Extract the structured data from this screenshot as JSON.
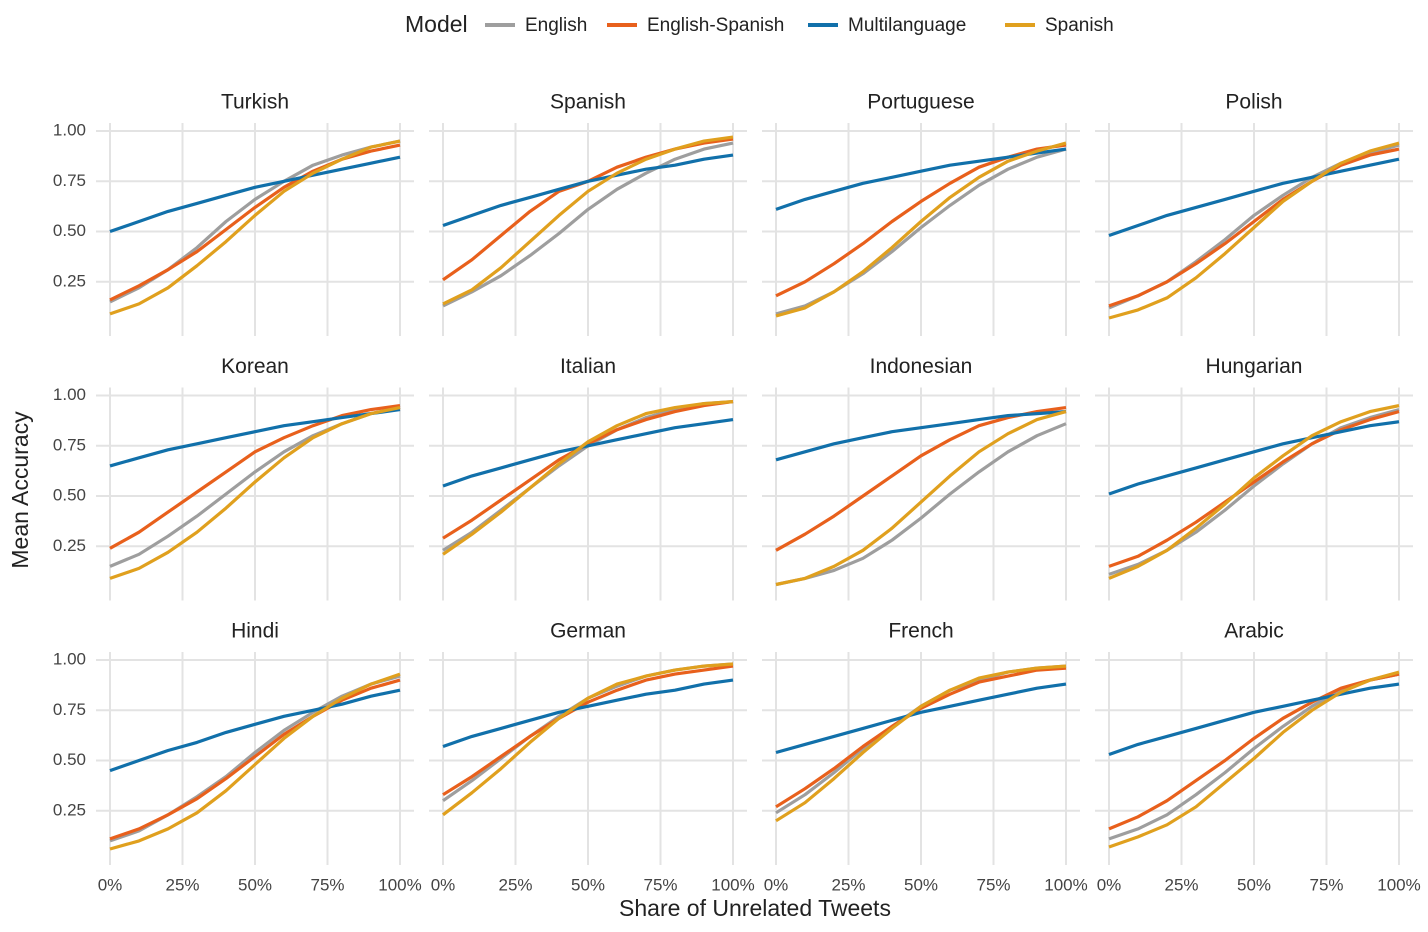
{
  "chart_data": {
    "type": "line",
    "legend_title": "Model",
    "x_label": "Share of Unrelated Tweets",
    "y_label": "Mean Accuracy",
    "x": [
      0,
      10,
      20,
      30,
      40,
      50,
      60,
      70,
      80,
      90,
      100
    ],
    "xlim": [
      0,
      100
    ],
    "xticks": [
      {
        "value": 0,
        "label": "0%"
      },
      {
        "value": 25,
        "label": "25%"
      },
      {
        "value": 50,
        "label": "50%"
      },
      {
        "value": 75,
        "label": "75%"
      },
      {
        "value": 100,
        "label": "100%"
      }
    ],
    "ylim": [
      0.02,
      1.03
    ],
    "yticks": [
      0.25,
      {
        "value": 0.5,
        "label": "0.50"
      },
      0.75,
      {
        "value": 1,
        "label": "1.00"
      }
    ],
    "grid": true,
    "series": [
      {
        "name": "English",
        "color": "#9e9e9e"
      },
      {
        "name": "English-Spanish",
        "color": "#e8601c"
      },
      {
        "name": "Multilanguage",
        "color": "#1170aa"
      },
      {
        "name": "Spanish",
        "color": "#e0a01e"
      }
    ],
    "panels": [
      {
        "title": "Turkish",
        "values": [
          [
            0.15,
            0.22,
            0.31,
            0.42,
            0.55,
            0.66,
            0.75,
            0.83,
            0.88,
            0.92,
            0.95
          ],
          [
            0.16,
            0.23,
            0.31,
            0.4,
            0.51,
            0.62,
            0.72,
            0.8,
            0.86,
            0.9,
            0.93
          ],
          [
            0.5,
            0.55,
            0.6,
            0.64,
            0.68,
            0.72,
            0.75,
            0.78,
            0.81,
            0.84,
            0.87
          ],
          [
            0.09,
            0.14,
            0.22,
            0.33,
            0.45,
            0.58,
            0.7,
            0.79,
            0.86,
            0.92,
            0.95
          ]
        ]
      },
      {
        "title": "Spanish",
        "values": [
          [
            0.13,
            0.2,
            0.28,
            0.38,
            0.49,
            0.61,
            0.71,
            0.79,
            0.86,
            0.91,
            0.94
          ],
          [
            0.26,
            0.36,
            0.48,
            0.6,
            0.7,
            0.75,
            0.82,
            0.87,
            0.91,
            0.94,
            0.96
          ],
          [
            0.53,
            0.58,
            0.63,
            0.67,
            0.71,
            0.75,
            0.78,
            0.81,
            0.83,
            0.86,
            0.88
          ],
          [
            0.14,
            0.21,
            0.32,
            0.45,
            0.58,
            0.7,
            0.79,
            0.86,
            0.91,
            0.95,
            0.97
          ]
        ]
      },
      {
        "title": "Portuguese",
        "values": [
          [
            0.09,
            0.13,
            0.2,
            0.29,
            0.4,
            0.52,
            0.63,
            0.73,
            0.81,
            0.87,
            0.91
          ],
          [
            0.18,
            0.25,
            0.34,
            0.44,
            0.55,
            0.65,
            0.74,
            0.82,
            0.87,
            0.91,
            0.93
          ],
          [
            0.61,
            0.66,
            0.7,
            0.74,
            0.77,
            0.8,
            0.83,
            0.85,
            0.87,
            0.89,
            0.91
          ],
          [
            0.08,
            0.12,
            0.2,
            0.3,
            0.42,
            0.55,
            0.67,
            0.77,
            0.85,
            0.9,
            0.94
          ]
        ]
      },
      {
        "title": "Polish",
        "values": [
          [
            0.12,
            0.18,
            0.25,
            0.35,
            0.46,
            0.58,
            0.68,
            0.77,
            0.84,
            0.89,
            0.93
          ],
          [
            0.13,
            0.18,
            0.25,
            0.34,
            0.44,
            0.55,
            0.66,
            0.75,
            0.83,
            0.88,
            0.91
          ],
          [
            0.48,
            0.53,
            0.58,
            0.62,
            0.66,
            0.7,
            0.74,
            0.77,
            0.8,
            0.83,
            0.86
          ],
          [
            0.07,
            0.11,
            0.17,
            0.27,
            0.39,
            0.52,
            0.65,
            0.75,
            0.84,
            0.9,
            0.94
          ]
        ]
      },
      {
        "title": "Korean",
        "values": [
          [
            0.15,
            0.21,
            0.3,
            0.4,
            0.51,
            0.62,
            0.72,
            0.8,
            0.86,
            0.91,
            0.94
          ],
          [
            0.24,
            0.32,
            0.42,
            0.52,
            0.62,
            0.72,
            0.79,
            0.85,
            0.9,
            0.93,
            0.95
          ],
          [
            0.65,
            0.69,
            0.73,
            0.76,
            0.79,
            0.82,
            0.85,
            0.87,
            0.89,
            0.91,
            0.93
          ],
          [
            0.09,
            0.14,
            0.22,
            0.32,
            0.44,
            0.57,
            0.69,
            0.79,
            0.86,
            0.91,
            0.94
          ]
        ]
      },
      {
        "title": "Italian",
        "values": [
          [
            0.23,
            0.32,
            0.43,
            0.54,
            0.65,
            0.75,
            0.83,
            0.89,
            0.93,
            0.96,
            0.97
          ],
          [
            0.29,
            0.38,
            0.48,
            0.58,
            0.68,
            0.76,
            0.83,
            0.88,
            0.92,
            0.95,
            0.97
          ],
          [
            0.55,
            0.6,
            0.64,
            0.68,
            0.72,
            0.75,
            0.78,
            0.81,
            0.84,
            0.86,
            0.88
          ],
          [
            0.21,
            0.31,
            0.42,
            0.54,
            0.66,
            0.77,
            0.85,
            0.91,
            0.94,
            0.96,
            0.97
          ]
        ]
      },
      {
        "title": "Indonesian",
        "values": [
          [
            0.06,
            0.09,
            0.13,
            0.19,
            0.28,
            0.39,
            0.51,
            0.62,
            0.72,
            0.8,
            0.86
          ],
          [
            0.23,
            0.31,
            0.4,
            0.5,
            0.6,
            0.7,
            0.78,
            0.85,
            0.89,
            0.92,
            0.94
          ],
          [
            0.68,
            0.72,
            0.76,
            0.79,
            0.82,
            0.84,
            0.86,
            0.88,
            0.9,
            0.91,
            0.92
          ],
          [
            0.06,
            0.09,
            0.15,
            0.23,
            0.34,
            0.47,
            0.6,
            0.72,
            0.81,
            0.88,
            0.92
          ]
        ]
      },
      {
        "title": "Hungarian",
        "values": [
          [
            0.11,
            0.16,
            0.23,
            0.32,
            0.43,
            0.55,
            0.66,
            0.76,
            0.84,
            0.89,
            0.93
          ],
          [
            0.15,
            0.2,
            0.28,
            0.37,
            0.47,
            0.57,
            0.67,
            0.76,
            0.83,
            0.88,
            0.92
          ],
          [
            0.51,
            0.56,
            0.6,
            0.64,
            0.68,
            0.72,
            0.76,
            0.79,
            0.82,
            0.85,
            0.87
          ],
          [
            0.09,
            0.15,
            0.23,
            0.34,
            0.46,
            0.59,
            0.7,
            0.8,
            0.87,
            0.92,
            0.95
          ]
        ]
      },
      {
        "title": "Hindi",
        "values": [
          [
            0.1,
            0.15,
            0.23,
            0.32,
            0.42,
            0.54,
            0.65,
            0.74,
            0.82,
            0.88,
            0.92
          ],
          [
            0.11,
            0.16,
            0.23,
            0.31,
            0.41,
            0.52,
            0.63,
            0.72,
            0.8,
            0.86,
            0.9
          ],
          [
            0.45,
            0.5,
            0.55,
            0.59,
            0.64,
            0.68,
            0.72,
            0.75,
            0.78,
            0.82,
            0.85
          ],
          [
            0.06,
            0.1,
            0.16,
            0.24,
            0.35,
            0.48,
            0.61,
            0.72,
            0.81,
            0.88,
            0.93
          ]
        ]
      },
      {
        "title": "German",
        "values": [
          [
            0.3,
            0.4,
            0.51,
            0.62,
            0.72,
            0.81,
            0.87,
            0.92,
            0.95,
            0.97,
            0.98
          ],
          [
            0.33,
            0.42,
            0.52,
            0.62,
            0.71,
            0.79,
            0.85,
            0.9,
            0.93,
            0.95,
            0.97
          ],
          [
            0.57,
            0.62,
            0.66,
            0.7,
            0.74,
            0.77,
            0.8,
            0.83,
            0.85,
            0.88,
            0.9
          ],
          [
            0.23,
            0.34,
            0.46,
            0.59,
            0.71,
            0.81,
            0.88,
            0.92,
            0.95,
            0.97,
            0.98
          ]
        ]
      },
      {
        "title": "French",
        "values": [
          [
            0.24,
            0.33,
            0.44,
            0.56,
            0.67,
            0.77,
            0.85,
            0.9,
            0.94,
            0.96,
            0.97
          ],
          [
            0.27,
            0.36,
            0.46,
            0.57,
            0.67,
            0.76,
            0.83,
            0.89,
            0.92,
            0.95,
            0.96
          ],
          [
            0.54,
            0.58,
            0.62,
            0.66,
            0.7,
            0.74,
            0.77,
            0.8,
            0.83,
            0.86,
            0.88
          ],
          [
            0.2,
            0.29,
            0.41,
            0.54,
            0.66,
            0.77,
            0.85,
            0.91,
            0.94,
            0.96,
            0.97
          ]
        ]
      },
      {
        "title": "Arabic",
        "values": [
          [
            0.11,
            0.16,
            0.23,
            0.33,
            0.44,
            0.56,
            0.67,
            0.77,
            0.85,
            0.9,
            0.93
          ],
          [
            0.16,
            0.22,
            0.3,
            0.4,
            0.5,
            0.61,
            0.71,
            0.79,
            0.86,
            0.9,
            0.93
          ],
          [
            0.53,
            0.58,
            0.62,
            0.66,
            0.7,
            0.74,
            0.77,
            0.8,
            0.83,
            0.86,
            0.88
          ],
          [
            0.07,
            0.12,
            0.18,
            0.27,
            0.39,
            0.51,
            0.64,
            0.75,
            0.84,
            0.9,
            0.94
          ]
        ]
      }
    ]
  }
}
